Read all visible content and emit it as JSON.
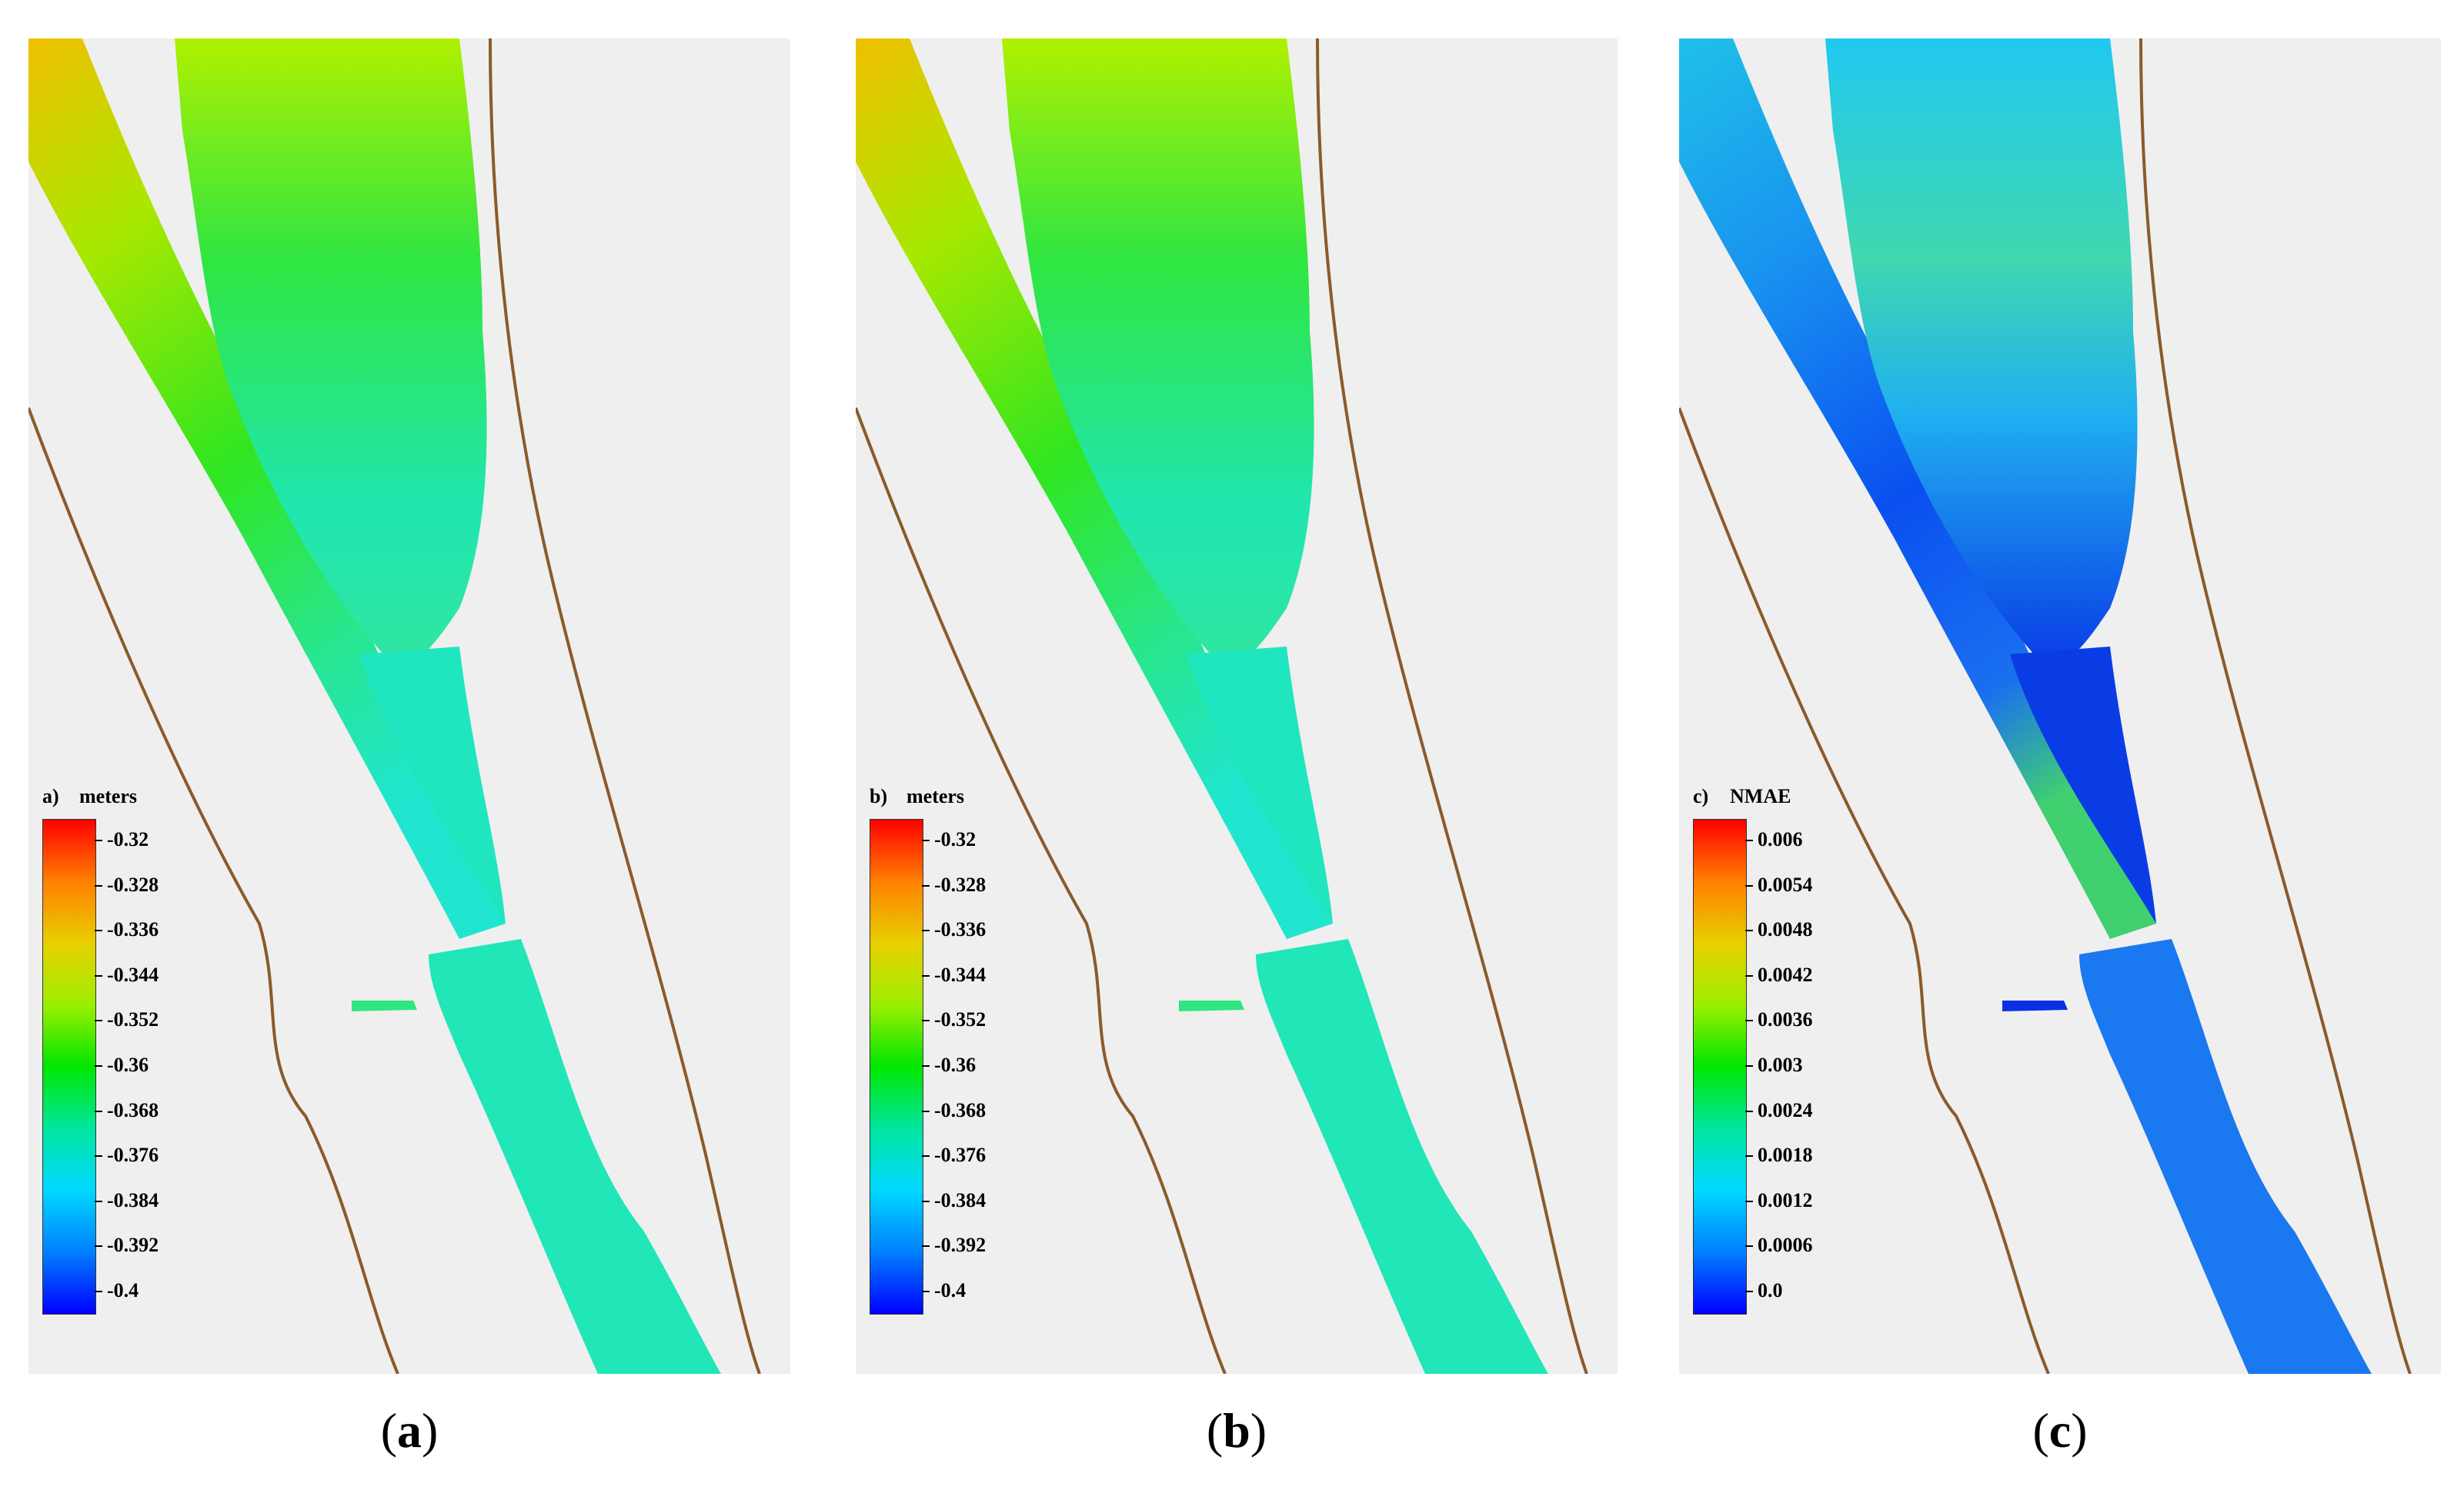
{
  "panels": [
    {
      "id": "a",
      "caption_letter": "a",
      "legend": {
        "letter": "a)",
        "unit": "meters",
        "ticks": [
          "-0.32",
          "-0.328",
          "-0.336",
          "-0.344",
          "-0.352",
          "-0.36",
          "-0.368",
          "-0.376",
          "-0.384",
          "-0.392",
          "-0.4"
        ],
        "colors": [
          "#ff0000",
          "#ff8000",
          "#e8d000",
          "#9cee00",
          "#00e600",
          "#00e6a0",
          "#00d8ff",
          "#0080ff",
          "#0000ff"
        ]
      }
    },
    {
      "id": "b",
      "caption_letter": "b",
      "legend": {
        "letter": "b)",
        "unit": "meters",
        "ticks": [
          "-0.32",
          "-0.328",
          "-0.336",
          "-0.344",
          "-0.352",
          "-0.36",
          "-0.368",
          "-0.376",
          "-0.384",
          "-0.392",
          "-0.4"
        ],
        "colors": [
          "#ff0000",
          "#ff8000",
          "#e8d000",
          "#9cee00",
          "#00e600",
          "#00e6a0",
          "#00d8ff",
          "#0080ff",
          "#0000ff"
        ]
      }
    },
    {
      "id": "c",
      "caption_letter": "c",
      "legend": {
        "letter": "c)",
        "unit": "NMAE",
        "ticks": [
          "0.006",
          "0.0054",
          "0.0048",
          "0.0042",
          "0.0036",
          "0.003",
          "0.0024",
          "0.0018",
          "0.0012",
          "0.0006",
          "0.0"
        ],
        "colors": [
          "#ff0000",
          "#ff8000",
          "#e8d000",
          "#9cee00",
          "#00e600",
          "#00e6a0",
          "#00d8ff",
          "#0080ff",
          "#0000ff"
        ]
      }
    }
  ],
  "map_colors": {
    "shoreline": "#8b5a2b",
    "background": "#efefef",
    "ab": {
      "north": "#f0c800",
      "upper": "#7fe600",
      "mid": "#19e619",
      "lower": "#30e680",
      "south": "#20e6c8"
    },
    "c": {
      "north": "#20c8f0",
      "upper": "#1aa0f0",
      "mid": "#0a5cf0",
      "lower": "#0a40e6",
      "south": "#40d060"
    }
  }
}
